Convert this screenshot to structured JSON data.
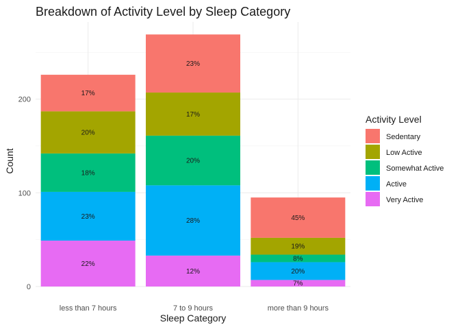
{
  "chart_data": {
    "type": "bar",
    "stacked": true,
    "title": "Breakdown of Activity Level by Sleep Category",
    "xlabel": "Sleep Category",
    "ylabel": "Count",
    "categories": [
      "less than 7 hours",
      "7 to 9 hours",
      "more than 9 hours"
    ],
    "ylim": [
      0,
      285
    ],
    "yticks": [
      0,
      100,
      200
    ],
    "grid": true,
    "legend_title": "Activity Level",
    "legend_position": "right",
    "series": [
      {
        "name": "Sedentary",
        "color": "#F8766D",
        "values": [
          39,
          62,
          43
        ],
        "labels": [
          "17%",
          "23%",
          "45%"
        ]
      },
      {
        "name": "Low Active",
        "color": "#A3A500",
        "values": [
          45,
          46,
          18
        ],
        "labels": [
          "20%",
          "17%",
          "19%"
        ]
      },
      {
        "name": "Somewhat Active",
        "color": "#00BF7D",
        "values": [
          41,
          53,
          8
        ],
        "labels": [
          "18%",
          "20%",
          "8%"
        ]
      },
      {
        "name": "Active",
        "color": "#00B0F6",
        "values": [
          52,
          75,
          19
        ],
        "labels": [
          "23%",
          "28%",
          "20%"
        ]
      },
      {
        "name": "Very Active",
        "color": "#E76BF3",
        "values": [
          49,
          33,
          7
        ],
        "labels": [
          "22%",
          "12%",
          "7%"
        ]
      }
    ]
  }
}
